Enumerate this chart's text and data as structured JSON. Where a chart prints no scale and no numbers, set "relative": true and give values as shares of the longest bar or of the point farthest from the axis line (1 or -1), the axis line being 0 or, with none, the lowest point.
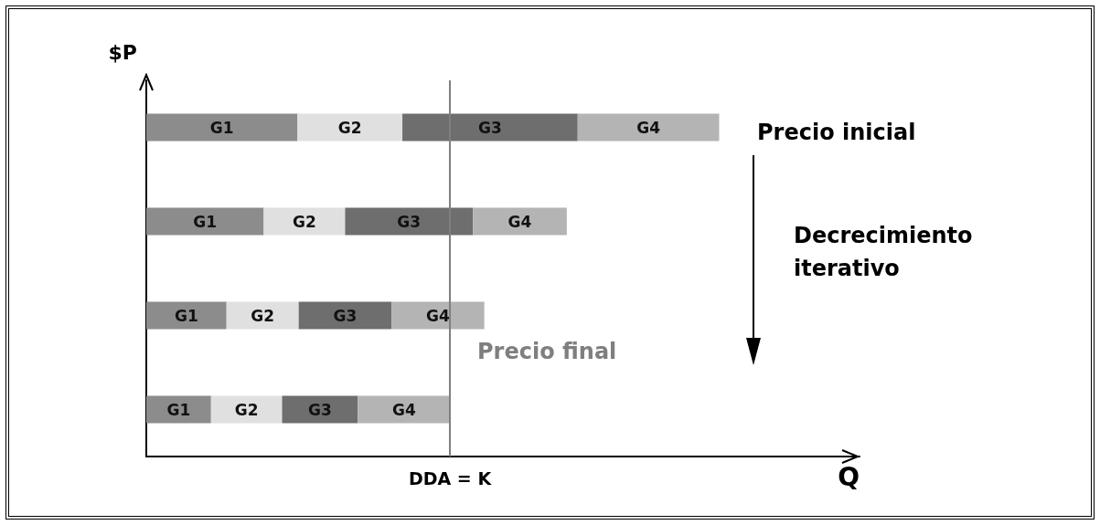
{
  "chart_data": {
    "type": "bar",
    "orientation": "horizontal",
    "stacked": true,
    "relative": true,
    "categories": [
      null,
      null,
      null,
      null
    ],
    "series": [
      {
        "name": "G1",
        "color": "#8c8c8c",
        "values": [
          0.264,
          0.205,
          0.14,
          0.113
        ]
      },
      {
        "name": "G2",
        "color": "#e0e0e0",
        "values": [
          0.183,
          0.142,
          0.126,
          0.124
        ]
      },
      {
        "name": "G3",
        "color": "#6e6e6e",
        "values": [
          0.306,
          0.223,
          0.162,
          0.132
        ]
      },
      {
        "name": "G4",
        "color": "#b4b4b4",
        "values": [
          0.247,
          0.164,
          0.162,
          0.162
        ]
      }
    ],
    "xlabel": "Q",
    "ylabel": "$P",
    "ref_lines": [
      {
        "axis": "x",
        "value": 0.532,
        "label": "DDA = K",
        "color": "#7f7f7f"
      }
    ],
    "annotations": [
      "Precio inicial",
      "Decrecimiento iterativo",
      "Precio final"
    ],
    "grid": false,
    "legend": false
  }
}
